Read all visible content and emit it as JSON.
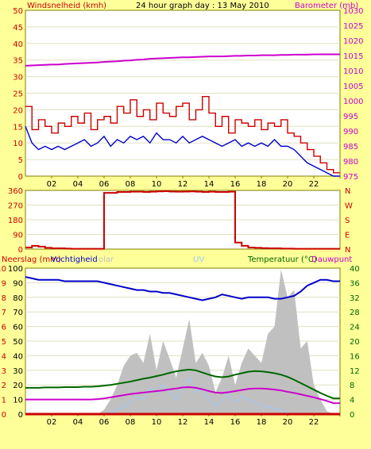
{
  "header": {
    "title_left": "Windsnelheid (kmh)",
    "title_center": "24 hour graph day : 13 May 2010",
    "title_right": "Barometer (mb)"
  },
  "bottom_header": {
    "left1": "Neerslag (mm)",
    "left2": "Vochtigheid",
    "left3": "olar",
    "center": "UV",
    "right1": "Temperatuur (°C)",
    "right2": "Dauwpunt"
  },
  "x_ticks": [
    "02",
    "04",
    "06",
    "08",
    "10",
    "12",
    "14",
    "16",
    "18",
    "20",
    "22",
    ""
  ],
  "colors": {
    "bg": "#ffff99",
    "plot": "#ffffff",
    "axis": "#808000",
    "wind_gust": "#cc0000",
    "wind_avg": "#0000cc",
    "baro": "#cc00cc",
    "dir": "#cc0000",
    "humidity": "#0000cc",
    "temp": "#006600",
    "dewpoint": "#cc00cc",
    "solar": "#c0c0c0",
    "uv": "#99ccff",
    "rain": "#cc0000",
    "left_label": "#cc0000",
    "right_label": "#cc00cc",
    "green_label": "#006600"
  },
  "chart_data": [
    {
      "type": "line",
      "title": "24 hour graph day : 13 May 2010",
      "ylabel": "Windsnelheid (kmh)",
      "ylabel_right": "Barometer (mb)",
      "ylim": [
        0,
        50
      ],
      "ylim_right": [
        975,
        1030
      ],
      "y_ticks": [
        0,
        5,
        10,
        15,
        20,
        25,
        30,
        35,
        40,
        45,
        50
      ],
      "y_ticks_right": [
        975,
        980,
        985,
        990,
        995,
        1000,
        1005,
        1010,
        1015,
        1020,
        1025,
        1030
      ],
      "x": [
        0,
        0.5,
        1,
        1.5,
        2,
        2.5,
        3,
        3.5,
        4,
        4.5,
        5,
        5.5,
        6,
        6.5,
        7,
        7.5,
        8,
        8.5,
        9,
        9.5,
        10,
        10.5,
        11,
        11.5,
        12,
        12.5,
        13,
        13.5,
        14,
        14.5,
        15,
        15.5,
        16,
        16.5,
        17,
        17.5,
        18,
        18.5,
        19,
        19.5,
        20,
        20.5,
        21,
        21.5,
        22,
        22.5,
        23,
        23.5
      ],
      "series": [
        {
          "name": "wind_gust",
          "axis": "left",
          "values": [
            21,
            14,
            17,
            15,
            13,
            16,
            15,
            18,
            16,
            19,
            14,
            17,
            18,
            16,
            21,
            19,
            23,
            18,
            20,
            17,
            22,
            19,
            18,
            21,
            22,
            17,
            20,
            24,
            19,
            15,
            18,
            13,
            17,
            16,
            15,
            17,
            14,
            16,
            15,
            17,
            13,
            12,
            10,
            8,
            6,
            4,
            2,
            1
          ]
        },
        {
          "name": "wind_avg",
          "axis": "left",
          "values": [
            15,
            10,
            8,
            9,
            8,
            9,
            8,
            9,
            10,
            11,
            9,
            10,
            12,
            9,
            11,
            10,
            12,
            11,
            12,
            10,
            13,
            11,
            11,
            10,
            12,
            10,
            11,
            12,
            11,
            10,
            9,
            10,
            11,
            9,
            10,
            9,
            10,
            9,
            11,
            9,
            9,
            8,
            6,
            4,
            3,
            2,
            1,
            0
          ]
        },
        {
          "name": "baro",
          "axis": "right",
          "values": [
            1011.6,
            1011.7,
            1011.8,
            1011.9,
            1012.0,
            1012.0,
            1012.2,
            1012.3,
            1012.4,
            1012.5,
            1012.6,
            1012.7,
            1012.9,
            1013.0,
            1013.1,
            1013.3,
            1013.4,
            1013.6,
            1013.7,
            1013.9,
            1014.0,
            1014.1,
            1014.2,
            1014.3,
            1014.4,
            1014.4,
            1014.5,
            1014.6,
            1014.7,
            1014.7,
            1014.7,
            1014.8,
            1014.9,
            1014.9,
            1015.0,
            1015.0,
            1015.1,
            1015.1,
            1015.1,
            1015.2,
            1015.2,
            1015.3,
            1015.3,
            1015.3,
            1015.4,
            1015.4,
            1015.4,
            1015.4
          ]
        }
      ]
    },
    {
      "type": "line",
      "ylim": [
        0,
        360
      ],
      "y_ticks": [
        0,
        90,
        180,
        270,
        360
      ],
      "y_ticks_right": [
        "N",
        "E",
        "S",
        "W",
        "N"
      ],
      "x": [
        0,
        0.5,
        1,
        1.5,
        2,
        2.5,
        3,
        3.5,
        4,
        4.5,
        5,
        5.5,
        6,
        6.5,
        7,
        7.5,
        8,
        8.5,
        9,
        9.5,
        10,
        10.5,
        11,
        11.5,
        12,
        12.5,
        13,
        13.5,
        14,
        14.5,
        15,
        15.5,
        16,
        16.5,
        17,
        17.5,
        18,
        18.5,
        19,
        19.5,
        20,
        20.5,
        21,
        21.5,
        22,
        22.5,
        23,
        23.5
      ],
      "series": [
        {
          "name": "wind_direction",
          "values": [
            10,
            20,
            15,
            8,
            5,
            5,
            3,
            2,
            2,
            2,
            2,
            2,
            345,
            345,
            350,
            350,
            352,
            352,
            350,
            352,
            354,
            355,
            353,
            352,
            353,
            354,
            352,
            350,
            352,
            350,
            350,
            352,
            40,
            20,
            10,
            8,
            6,
            5,
            5,
            3,
            3,
            2,
            2,
            2,
            2,
            2,
            2,
            2
          ]
        }
      ]
    },
    {
      "type": "line",
      "ylabel": "Neerslag (mm)",
      "ylabel_right": "Temperatuur (°C)",
      "ylim": [
        0,
        10
      ],
      "ylim_humidity": [
        0,
        100
      ],
      "ylim_right": [
        0,
        40
      ],
      "y_ticks": [
        0,
        1,
        2,
        3,
        4,
        5,
        6,
        7,
        8,
        9,
        10
      ],
      "y_ticks_humidity": [
        0,
        10,
        20,
        30,
        40,
        50,
        60,
        70,
        80,
        90,
        100
      ],
      "y_ticks_right": [
        0,
        4,
        8,
        12,
        16,
        20,
        24,
        28,
        32,
        36,
        40
      ],
      "x": [
        0,
        0.5,
        1,
        1.5,
        2,
        2.5,
        3,
        3.5,
        4,
        4.5,
        5,
        5.5,
        6,
        6.5,
        7,
        7.5,
        8,
        8.5,
        9,
        9.5,
        10,
        10.5,
        11,
        11.5,
        12,
        12.5,
        13,
        13.5,
        14,
        14.5,
        15,
        15.5,
        16,
        16.5,
        17,
        17.5,
        18,
        18.5,
        19,
        19.5,
        20,
        20.5,
        21,
        21.5,
        22,
        22.5,
        23,
        23.5
      ],
      "series": [
        {
          "name": "humidity",
          "axis": "humidity",
          "values": [
            94,
            93,
            92,
            92,
            92,
            92,
            91,
            91,
            91,
            91,
            91,
            91,
            90,
            89,
            88,
            87,
            86,
            85,
            85,
            84,
            84,
            83,
            83,
            82,
            81,
            80,
            79,
            78,
            79,
            80,
            82,
            81,
            80,
            79,
            80,
            80,
            80,
            80,
            79,
            79,
            80,
            81,
            84,
            88,
            90,
            92,
            92,
            91
          ]
        },
        {
          "name": "temperature",
          "axis": "right",
          "values": [
            7.2,
            7.2,
            7.2,
            7.3,
            7.3,
            7.3,
            7.4,
            7.4,
            7.4,
            7.5,
            7.5,
            7.6,
            7.8,
            8.0,
            8.3,
            8.6,
            8.9,
            9.3,
            9.7,
            10.0,
            10.4,
            10.8,
            11.3,
            11.7,
            12.0,
            12.2,
            12.0,
            11.4,
            10.8,
            10.3,
            10.1,
            10.3,
            10.8,
            11.2,
            11.6,
            11.8,
            11.7,
            11.5,
            11.2,
            10.8,
            10.2,
            9.4,
            8.5,
            7.6,
            6.7,
            5.8,
            5.0,
            4.3
          ]
        },
        {
          "name": "dewpoint",
          "axis": "right",
          "values": [
            4.0,
            4.0,
            4.0,
            4.0,
            4.0,
            4.0,
            4.0,
            4.0,
            4.0,
            4.0,
            4.0,
            4.1,
            4.3,
            4.6,
            4.9,
            5.2,
            5.5,
            5.7,
            5.9,
            6.1,
            6.3,
            6.5,
            6.8,
            7.0,
            7.3,
            7.4,
            7.2,
            6.8,
            6.3,
            5.9,
            5.8,
            6.0,
            6.3,
            6.6,
            6.9,
            7.0,
            7.0,
            6.9,
            6.7,
            6.5,
            6.1,
            5.8,
            5.4,
            5.0,
            4.6,
            4.1,
            3.6,
            3.0
          ]
        },
        {
          "name": "solar",
          "axis": "humidity",
          "values": [
            0,
            0,
            0,
            0,
            0,
            0,
            0,
            0,
            0,
            0,
            0,
            0,
            3,
            10,
            20,
            33,
            40,
            42,
            35,
            55,
            30,
            50,
            38,
            25,
            45,
            65,
            35,
            42,
            33,
            15,
            25,
            40,
            20,
            35,
            45,
            40,
            35,
            55,
            60,
            99,
            80,
            85,
            45,
            50,
            20,
            10,
            2,
            0
          ]
        },
        {
          "name": "uv",
          "axis": "humidity",
          "values": [
            0,
            0,
            0,
            0,
            0,
            0,
            0,
            0,
            0,
            0,
            0,
            0,
            0,
            1,
            3,
            5,
            8,
            12,
            10,
            18,
            15,
            20,
            15,
            10,
            18,
            25,
            15,
            18,
            10,
            5,
            10,
            14,
            8,
            12,
            10,
            8,
            6,
            5,
            4,
            3,
            1,
            0,
            0,
            0,
            0,
            0,
            0,
            0
          ]
        },
        {
          "name": "rain",
          "axis": "left",
          "values": [
            0,
            0,
            0,
            0,
            0,
            0,
            0,
            0,
            0,
            0,
            0,
            0,
            0,
            0,
            0,
            0,
            0,
            0,
            0,
            0,
            0,
            0,
            0,
            0,
            0,
            0,
            0,
            0,
            0,
            0,
            0,
            0,
            0,
            0,
            0,
            0,
            0,
            0,
            0,
            0,
            0,
            0,
            0,
            0,
            0,
            0,
            0,
            0
          ]
        }
      ]
    }
  ]
}
